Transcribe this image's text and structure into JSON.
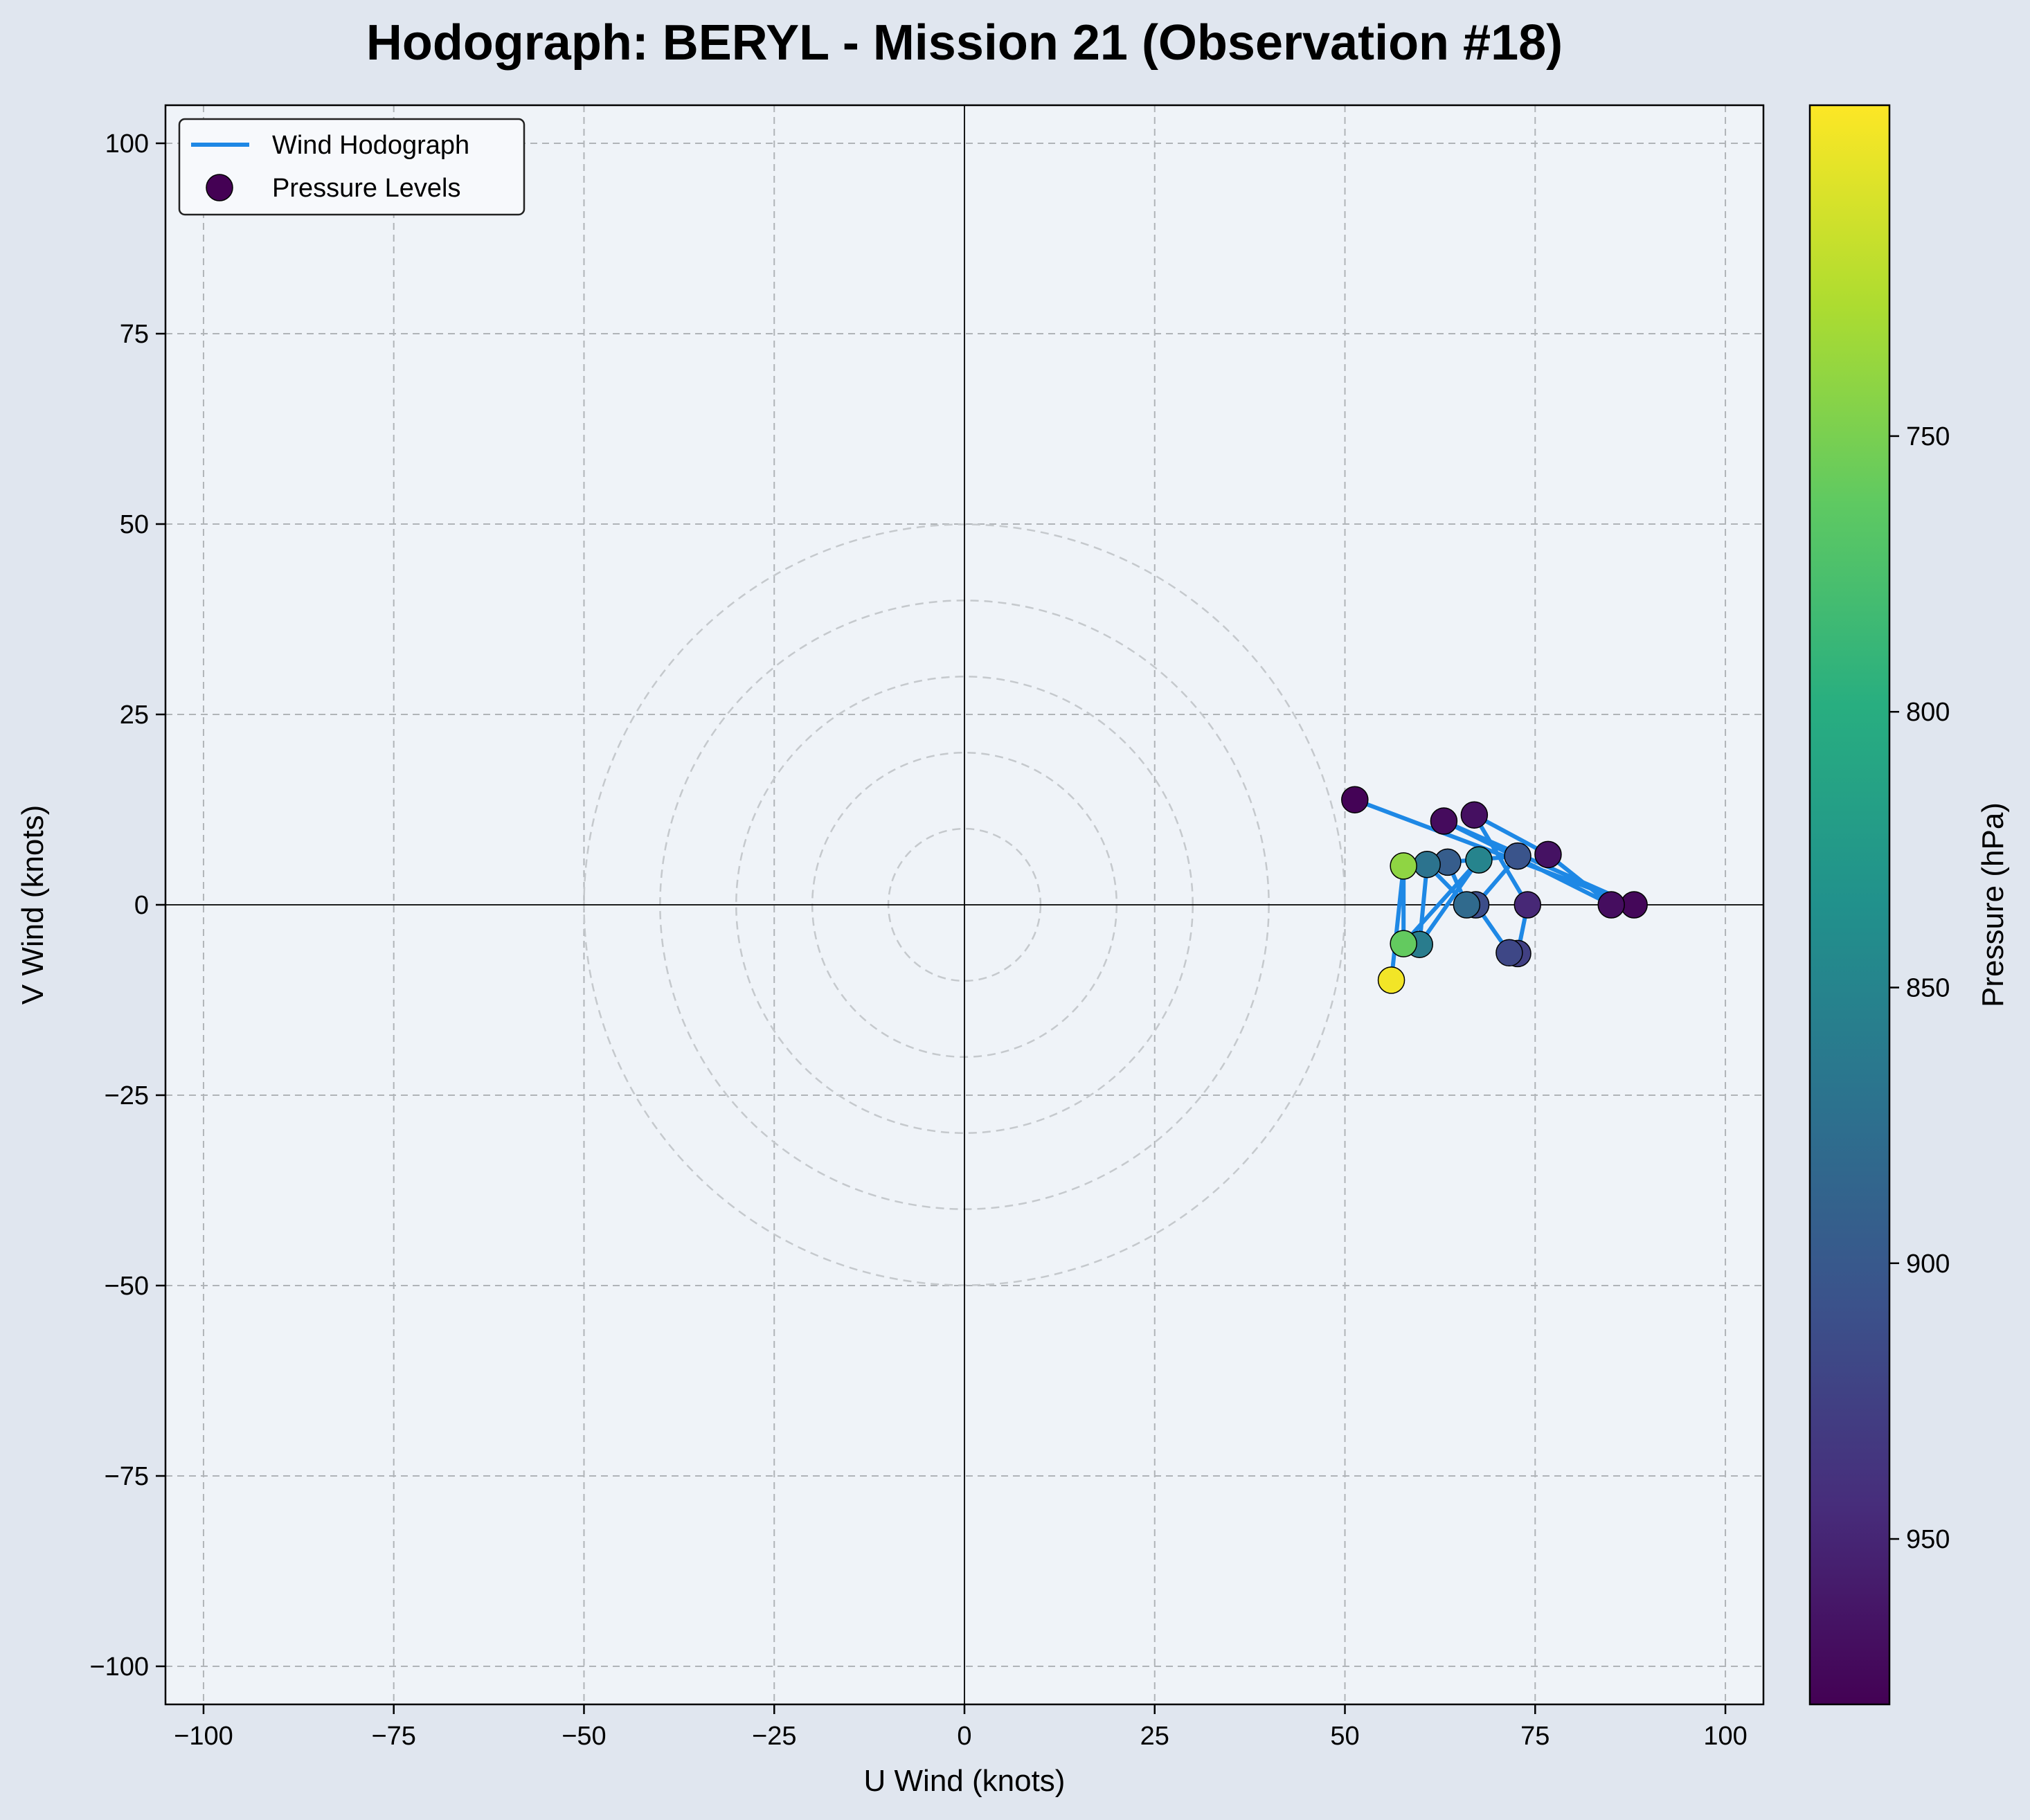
{
  "chart_data": {
    "type": "scatter",
    "title": "Hodograph: BERYL - Mission 21 (Observation #18)",
    "xlabel": "U Wind (knots)",
    "ylabel": "V Wind (knots)",
    "xlim": [
      -105,
      105
    ],
    "ylim": [
      -105,
      105
    ],
    "xticks": [
      -100,
      -75,
      -50,
      -25,
      0,
      25,
      50,
      75,
      100
    ],
    "yticks": [
      -100,
      -75,
      -50,
      -25,
      0,
      25,
      50,
      75,
      100
    ],
    "tick_labels": [
      "−100",
      "−75",
      "−50",
      "−25",
      "0",
      "25",
      "50",
      "75",
      "100"
    ],
    "grid": true,
    "speed_rings": [
      10,
      20,
      30,
      40,
      50
    ],
    "legend": {
      "placement": "top-left",
      "entries": [
        "Wind Hodograph",
        "Pressure Levels"
      ]
    },
    "line_color": "#1e88e5",
    "colorbar": {
      "label": "Pressure (hPa)",
      "range": [
        980,
        690
      ],
      "ticks": [
        750,
        800,
        850,
        900,
        950
      ],
      "colormap": "viridis"
    },
    "series": [
      {
        "name": "Pressure Levels",
        "points": [
          {
            "u": 51.3,
            "v": 13.8,
            "p": 978
          },
          {
            "u": 88.0,
            "v": 0.0,
            "p": 975
          },
          {
            "u": 63.0,
            "v": 11.0,
            "p": 972
          },
          {
            "u": 85.0,
            "v": 0.0,
            "p": 970
          },
          {
            "u": 76.7,
            "v": 6.6,
            "p": 966
          },
          {
            "u": 67.0,
            "v": 11.8,
            "p": 968
          },
          {
            "u": 74.0,
            "v": 0.0,
            "p": 948
          },
          {
            "u": 72.7,
            "v": -6.4,
            "p": 925
          },
          {
            "u": 71.6,
            "v": -6.3,
            "p": 918
          },
          {
            "u": 67.2,
            "v": 0.0,
            "p": 912
          },
          {
            "u": 72.7,
            "v": 6.4,
            "p": 905
          },
          {
            "u": 63.5,
            "v": 5.6,
            "p": 895
          },
          {
            "u": 66.0,
            "v": 0.0,
            "p": 880
          },
          {
            "u": 60.8,
            "v": 5.3,
            "p": 870
          },
          {
            "u": 59.8,
            "v": -5.2,
            "p": 860
          },
          {
            "u": 67.6,
            "v": 5.9,
            "p": 850
          },
          {
            "u": 57.7,
            "v": -5.1,
            "p": 760
          },
          {
            "u": 57.7,
            "v": 5.1,
            "p": 740
          },
          {
            "u": 56.1,
            "v": -9.9,
            "p": 695
          }
        ]
      }
    ]
  }
}
